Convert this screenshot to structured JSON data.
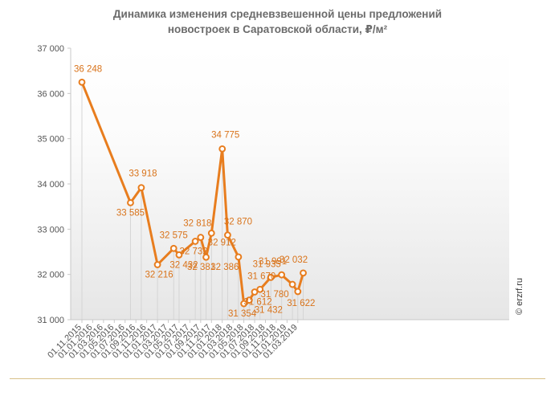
{
  "chart_data": {
    "type": "line",
    "title_lines": [
      "Динамика изменения средневзвешенной цены предложений",
      "новостроек в Саратовской области, ₽/м²"
    ],
    "xlabel": "",
    "ylabel": "",
    "ylim": [
      31000,
      37000
    ],
    "y_ticks": [
      "31 000",
      "32 000",
      "33 000",
      "34 000",
      "35 000",
      "36 000",
      "37 000"
    ],
    "x_tick_labels": [
      "01.11.2015",
      "01.01.2016",
      "01.03.2016",
      "01.05.2016",
      "01.07.2016",
      "01.09.2016",
      "01.11.2016",
      "01.01.2017",
      "01.03.2017",
      "01.05.2017",
      "01.07.2017",
      "01.09.2017",
      "01.11.2017",
      "01.01.2018",
      "01.03.2018",
      "01.05.2018",
      "01.07.2018",
      "01.09.2018",
      "01.11.2018",
      "01.01.2019",
      "01.03.2019"
    ],
    "grid": false,
    "series": [
      {
        "points": [
          {
            "x": "2015-11-01",
            "y": 36248,
            "label": "36 248"
          },
          {
            "x": "2016-08-01",
            "y": 33585,
            "label": "33 585"
          },
          {
            "x": "2016-10-01",
            "y": 33918,
            "label": "33 918"
          },
          {
            "x": "2017-01-01",
            "y": 32216,
            "label": "32 216"
          },
          {
            "x": "2017-04-01",
            "y": 32575,
            "label": "32 575"
          },
          {
            "x": "2017-05-01",
            "y": 32432,
            "label": "32 432"
          },
          {
            "x": "2017-08-01",
            "y": 32732,
            "label": "32 732"
          },
          {
            "x": "2017-09-01",
            "y": 32818,
            "label": "32 818"
          },
          {
            "x": "2017-10-01",
            "y": 32381,
            "label": "32 381"
          },
          {
            "x": "2017-11-01",
            "y": 32912,
            "label": "32 912"
          },
          {
            "x": "2018-01-01",
            "y": 34775,
            "label": "34 775"
          },
          {
            "x": "2018-02-01",
            "y": 32870,
            "label": "32 870"
          },
          {
            "x": "2018-04-01",
            "y": 32386,
            "label": "32 386"
          },
          {
            "x": "2018-05-01",
            "y": 31354,
            "label": "31 354"
          },
          {
            "x": "2018-06-01",
            "y": 31432,
            "label": "31 432"
          },
          {
            "x": "2018-07-01",
            "y": 31612,
            "label": "31 612"
          },
          {
            "x": "2018-08-01",
            "y": 31670,
            "label": "31 670"
          },
          {
            "x": "2018-10-01",
            "y": 31935,
            "label": "31 935"
          },
          {
            "x": "2018-12-01",
            "y": 31991,
            "label": "31 991"
          },
          {
            "x": "2019-02-01",
            "y": 31780,
            "label": "31 780"
          },
          {
            "x": "2019-03-01",
            "y": 31622,
            "label": "31 622"
          },
          {
            "x": "2019-04-01",
            "y": 32032,
            "label": "32 032"
          }
        ]
      }
    ],
    "source": "© erzrf.ru",
    "colors": {
      "line": "#E87D1E",
      "label": "#D9731A",
      "axis": "#c8c8c8",
      "drop_line": "#d5d5d5",
      "plot_gradient_top": "#ffffff",
      "plot_gradient_bottom": "#e6e6e6",
      "footer_line": "#d8c08a"
    }
  }
}
